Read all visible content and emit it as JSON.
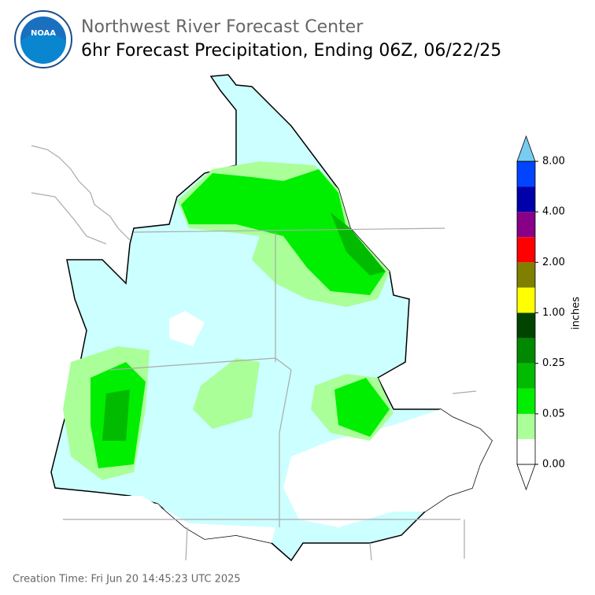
{
  "header": {
    "agency": "Northwest River Forecast Center",
    "title": "6hr Forecast Precipitation, Ending 06Z, 06/22/25",
    "logo": "NOAA"
  },
  "colorbar": {
    "label": "inches",
    "colors": [
      "#ffffff",
      "#ccffff",
      "#aaff99",
      "#00ee00",
      "#00bb00",
      "#008800",
      "#004400",
      "#ffff00",
      "#7f7f00",
      "#ff0000",
      "#880088",
      "#0000aa",
      "#0044ff"
    ],
    "extend_color": "#77ccf0",
    "ticks": [
      {
        "value": 0,
        "label": "0.00"
      },
      {
        "value": 0.05,
        "label": "0.05"
      },
      {
        "value": 0.25,
        "label": "0.25"
      },
      {
        "value": 1,
        "label": "1.00"
      },
      {
        "value": 2,
        "label": "2.00"
      },
      {
        "value": 4,
        "label": "4.00"
      },
      {
        "value": 8,
        "label": "8.00"
      }
    ]
  },
  "footer": {
    "creation_time": "Creation Time: Fri Jun 20 14:45:23 UTC 2025"
  }
}
